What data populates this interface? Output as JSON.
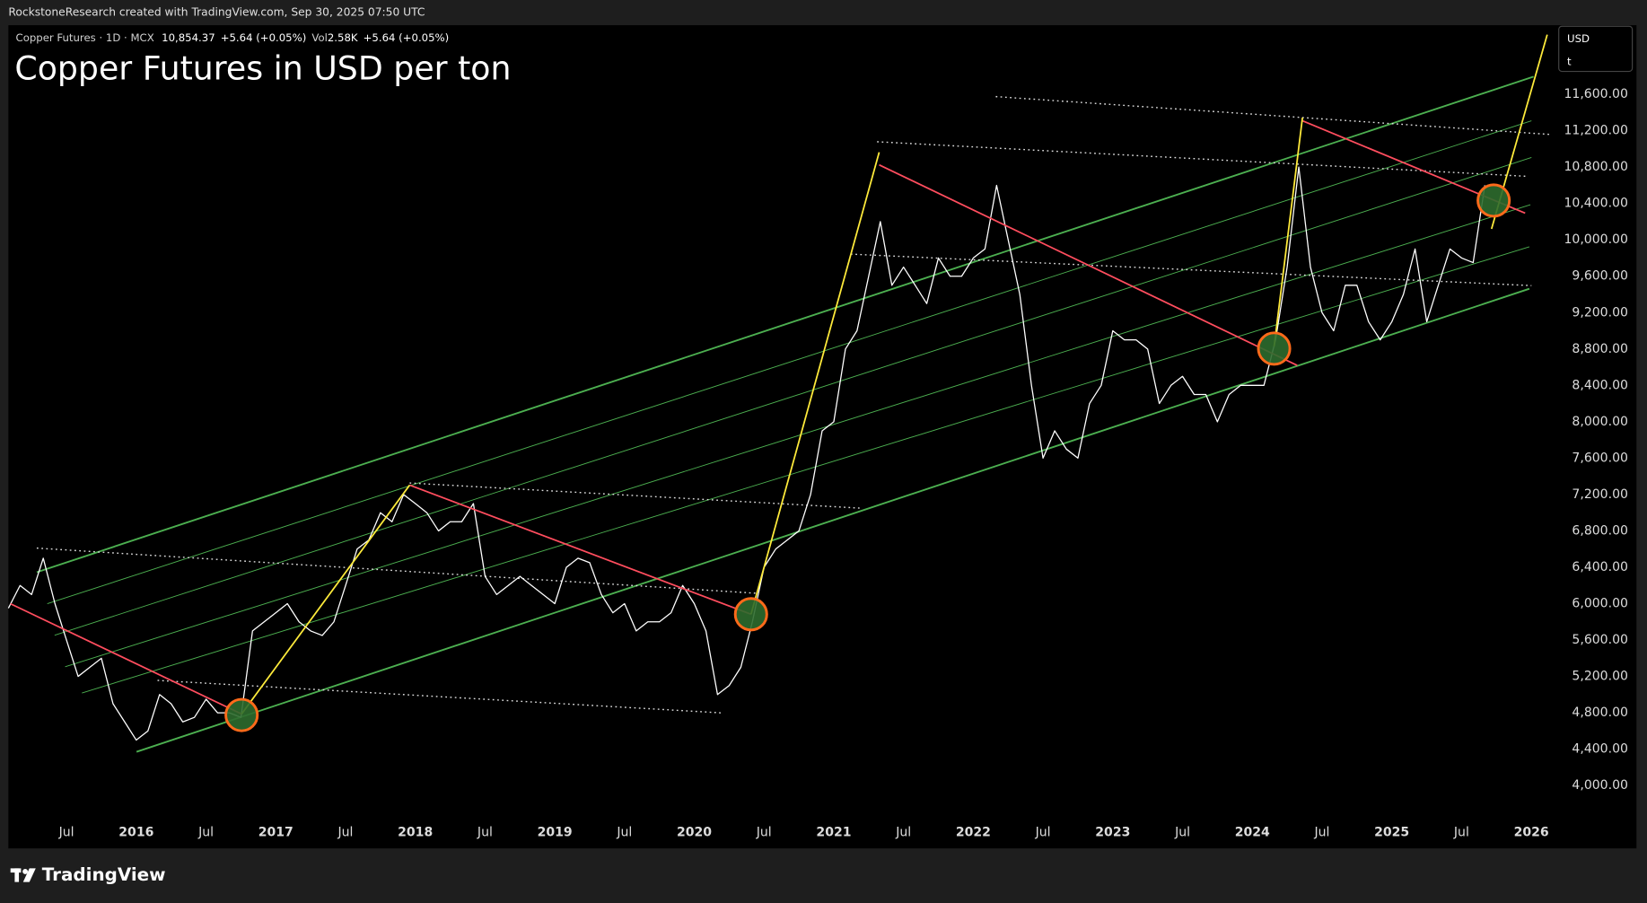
{
  "chart_data": {
    "type": "line",
    "header": {
      "source": "RockstoneResearch created with TradingView.com, Sep 30, 2025 07:50 UTC",
      "symbol": "Copper Futures · 1D · MCX",
      "last": "10,854.37",
      "change": "+5.64 (+0.05%)",
      "vol_label": "Vol",
      "vol": "2.58K",
      "vol_change": "+5.64 (+0.05%)",
      "currency": "USD",
      "unit": "t",
      "brand": "TradingView"
    },
    "title": "Copper Futures in USD per ton",
    "color": "#ffffff",
    "grid": false,
    "xlim": [
      "2015-02",
      "2026-03"
    ],
    "ylim": [
      3690,
      12360
    ],
    "xticks": [
      {
        "value": "2015-07",
        "label": "Jul"
      },
      {
        "value": "2016-01",
        "label": "2016"
      },
      {
        "value": "2016-07",
        "label": "Jul"
      },
      {
        "value": "2017-01",
        "label": "2017"
      },
      {
        "value": "2017-07",
        "label": "Jul"
      },
      {
        "value": "2018-01",
        "label": "2018"
      },
      {
        "value": "2018-07",
        "label": "Jul"
      },
      {
        "value": "2019-01",
        "label": "2019"
      },
      {
        "value": "2019-07",
        "label": "Jul"
      },
      {
        "value": "2020-01",
        "label": "2020"
      },
      {
        "value": "2020-07",
        "label": "Jul"
      },
      {
        "value": "2021-01",
        "label": "2021"
      },
      {
        "value": "2021-07",
        "label": "Jul"
      },
      {
        "value": "2022-01",
        "label": "2022"
      },
      {
        "value": "2022-07",
        "label": "Jul"
      },
      {
        "value": "2023-01",
        "label": "2023"
      },
      {
        "value": "2023-07",
        "label": "Jul"
      },
      {
        "value": "2024-01",
        "label": "2024"
      },
      {
        "value": "2024-07",
        "label": "Jul"
      },
      {
        "value": "2025-01",
        "label": "2025"
      },
      {
        "value": "2025-07",
        "label": "Jul"
      },
      {
        "value": "2026-01",
        "label": "2026"
      }
    ],
    "yticks": [
      {
        "value": 4000,
        "label": "4,000.00"
      },
      {
        "value": 4400,
        "label": "4,400.00"
      },
      {
        "value": 4800,
        "label": "4,800.00"
      },
      {
        "value": 5200,
        "label": "5,200.00"
      },
      {
        "value": 5600,
        "label": "5,600.00"
      },
      {
        "value": 6000,
        "label": "6,000.00"
      },
      {
        "value": 6400,
        "label": "6,400.00"
      },
      {
        "value": 6800,
        "label": "6,800.00"
      },
      {
        "value": 7200,
        "label": "7,200.00"
      },
      {
        "value": 7600,
        "label": "7,600.00"
      },
      {
        "value": 8000,
        "label": "8,000.00"
      },
      {
        "value": 8400,
        "label": "8,400.00"
      },
      {
        "value": 8800,
        "label": "8,800.00"
      },
      {
        "value": 9200,
        "label": "9,200.00"
      },
      {
        "value": 9600,
        "label": "9,600.00"
      },
      {
        "value": 10000,
        "label": "10,000.00"
      },
      {
        "value": 10400,
        "label": "10,400.00"
      },
      {
        "value": 10800,
        "label": "10,800.00"
      },
      {
        "value": 11200,
        "label": "11,200.00"
      },
      {
        "value": 11600,
        "label": "11,600.00"
      }
    ],
    "x": [
      "2015-02",
      "2015-03",
      "2015-04",
      "2015-05",
      "2015-06",
      "2015-07",
      "2015-08",
      "2015-09",
      "2015-10",
      "2015-11",
      "2015-12",
      "2016-01",
      "2016-02",
      "2016-03",
      "2016-04",
      "2016-05",
      "2016-06",
      "2016-07",
      "2016-08",
      "2016-09",
      "2016-10",
      "2016-11",
      "2016-12",
      "2017-01",
      "2017-02",
      "2017-03",
      "2017-04",
      "2017-05",
      "2017-06",
      "2017-07",
      "2017-08",
      "2017-09",
      "2017-10",
      "2017-11",
      "2017-12",
      "2018-01",
      "2018-02",
      "2018-03",
      "2018-04",
      "2018-05",
      "2018-06",
      "2018-07",
      "2018-08",
      "2018-09",
      "2018-10",
      "2018-11",
      "2018-12",
      "2019-01",
      "2019-02",
      "2019-03",
      "2019-04",
      "2019-05",
      "2019-06",
      "2019-07",
      "2019-08",
      "2019-09",
      "2019-10",
      "2019-11",
      "2019-12",
      "2020-01",
      "2020-02",
      "2020-03",
      "2020-04",
      "2020-05",
      "2020-06",
      "2020-07",
      "2020-08",
      "2020-09",
      "2020-10",
      "2020-11",
      "2020-12",
      "2021-01",
      "2021-02",
      "2021-03",
      "2021-04",
      "2021-05",
      "2021-06",
      "2021-07",
      "2021-08",
      "2021-09",
      "2021-10",
      "2021-11",
      "2021-12",
      "2022-01",
      "2022-02",
      "2022-03",
      "2022-04",
      "2022-05",
      "2022-06",
      "2022-07",
      "2022-08",
      "2022-09",
      "2022-10",
      "2022-11",
      "2022-12",
      "2023-01",
      "2023-02",
      "2023-03",
      "2023-04",
      "2023-05",
      "2023-06",
      "2023-07",
      "2023-08",
      "2023-09",
      "2023-10",
      "2023-11",
      "2023-12",
      "2024-01",
      "2024-02",
      "2024-03",
      "2024-04",
      "2024-05",
      "2024-06",
      "2024-07",
      "2024-08",
      "2024-09",
      "2024-10",
      "2024-11",
      "2024-12",
      "2025-01",
      "2025-02",
      "2025-03",
      "2025-04",
      "2025-05",
      "2025-06",
      "2025-07",
      "2025-08",
      "2025-09"
    ],
    "values": [
      5950,
      6200,
      6100,
      6500,
      6000,
      5600,
      5200,
      5300,
      5400,
      4900,
      4700,
      4500,
      4600,
      5000,
      4900,
      4700,
      4750,
      4950,
      4800,
      4800,
      4750,
      5700,
      5800,
      5900,
      6000,
      5800,
      5700,
      5650,
      5800,
      6200,
      6600,
      6700,
      7000,
      6900,
      7200,
      7100,
      7000,
      6800,
      6900,
      6900,
      7100,
      6300,
      6100,
      6200,
      6300,
      6200,
      6100,
      6000,
      6400,
      6500,
      6450,
      6100,
      5900,
      6000,
      5700,
      5800,
      5800,
      5900,
      6200,
      6000,
      5700,
      5000,
      5100,
      5300,
      5800,
      6400,
      6600,
      6700,
      6800,
      7200,
      7900,
      8000,
      8800,
      9000,
      9600,
      10200,
      9500,
      9700,
      9500,
      9300,
      9800,
      9600,
      9600,
      9800,
      9900,
      10600,
      10000,
      9400,
      8400,
      7600,
      7900,
      7700,
      7600,
      8200,
      8400,
      9000,
      8900,
      8900,
      8800,
      8200,
      8400,
      8500,
      8300,
      8300,
      8000,
      8300,
      8400,
      8400,
      8400,
      8900,
      9700,
      10800,
      9700,
      9200,
      9000,
      9500,
      9500,
      9100,
      8900,
      9100,
      9400,
      9900,
      9100,
      9500,
      9900,
      9800,
      9750,
      10600
    ]
  }
}
